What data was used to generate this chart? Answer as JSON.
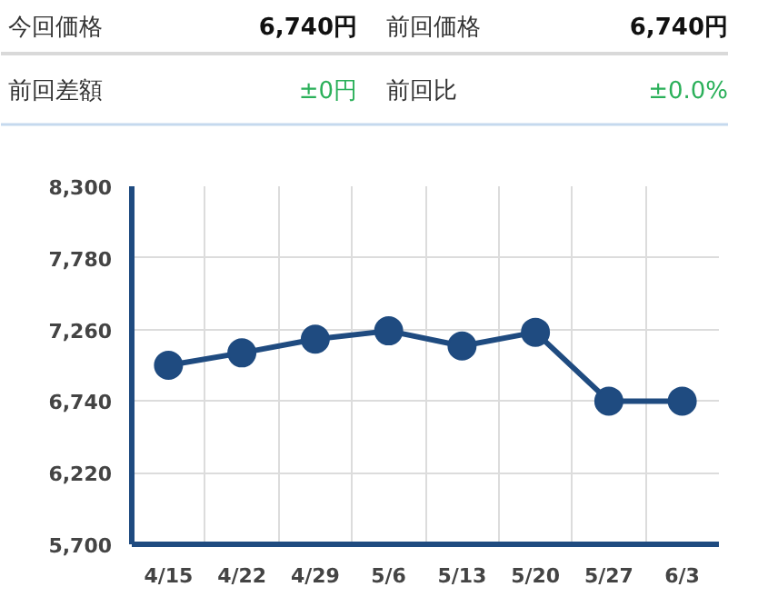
{
  "chart_data": [
    {
      "type": "other",
      "annotations": [
        "今回価格",
        "6,740円",
        "前回価格",
        "6,740円",
        "前回差額",
        "±0円",
        "前回比",
        "±0.0%"
      ],
      "colors": [
        "#333333",
        "#111111",
        "#333333",
        "#111111",
        "#333333",
        "#2bb05a",
        "#333333",
        "#2bb05a"
      ]
    },
    {
      "type": "line",
      "categories": [
        "4/15",
        "4/22",
        "4/29",
        "5/6",
        "5/13",
        "5/20",
        "5/27",
        "6/3"
      ],
      "series": [
        {
          "color": "#1f4b80",
          "values": [
            7000,
            7090,
            7190,
            7250,
            7140,
            7240,
            6740,
            6740
          ]
        }
      ],
      "ylim": [
        5700,
        8300
      ],
      "yticks": [
        {
          "value": 5700,
          "label": "5,700"
        },
        {
          "value": 6220,
          "label": "6,220"
        },
        {
          "value": 6740,
          "label": "6,740"
        },
        {
          "value": 7260,
          "label": "7,260"
        },
        {
          "value": 7780,
          "label": "7,780"
        },
        {
          "value": 8300,
          "label": "8,300"
        }
      ],
      "grid": true,
      "marker": "circle",
      "line_style": "solid"
    }
  ]
}
